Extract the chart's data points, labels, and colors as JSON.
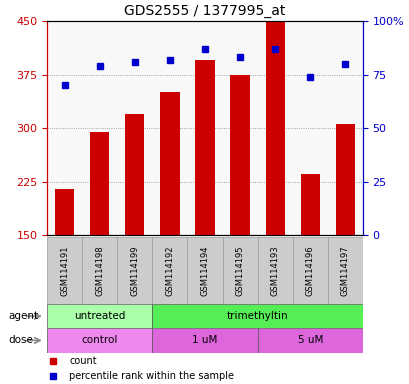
{
  "title": "GDS2555 / 1377995_at",
  "samples": [
    "GSM114191",
    "GSM114198",
    "GSM114199",
    "GSM114192",
    "GSM114194",
    "GSM114195",
    "GSM114193",
    "GSM114196",
    "GSM114197"
  ],
  "counts": [
    215,
    295,
    320,
    350,
    395,
    375,
    450,
    235,
    305
  ],
  "percentile_ranks": [
    70,
    79,
    81,
    82,
    87,
    83,
    87,
    74,
    80
  ],
  "ylim_left": [
    150,
    450
  ],
  "ylim_right": [
    0,
    100
  ],
  "yticks_left": [
    150,
    225,
    300,
    375,
    450
  ],
  "yticks_right": [
    0,
    25,
    50,
    75,
    100
  ],
  "bar_color": "#cc0000",
  "dot_color": "#0000cc",
  "agent_groups": [
    {
      "label": "untreated",
      "start": 0,
      "end": 3,
      "color": "#aaffaa"
    },
    {
      "label": "trimethyltin",
      "start": 3,
      "end": 9,
      "color": "#55ee55"
    }
  ],
  "dose_groups": [
    {
      "label": "control",
      "start": 0,
      "end": 3,
      "color": "#ee88ee"
    },
    {
      "label": "1 uM",
      "start": 3,
      "end": 6,
      "color": "#dd66dd"
    },
    {
      "label": "5 uM",
      "start": 6,
      "end": 9,
      "color": "#dd66dd"
    }
  ],
  "left_axis_color": "#cc0000",
  "right_axis_color": "#0000cc",
  "background_color": "#ffffff",
  "sample_box_color": "#cccccc",
  "sample_box_edge": "#999999"
}
